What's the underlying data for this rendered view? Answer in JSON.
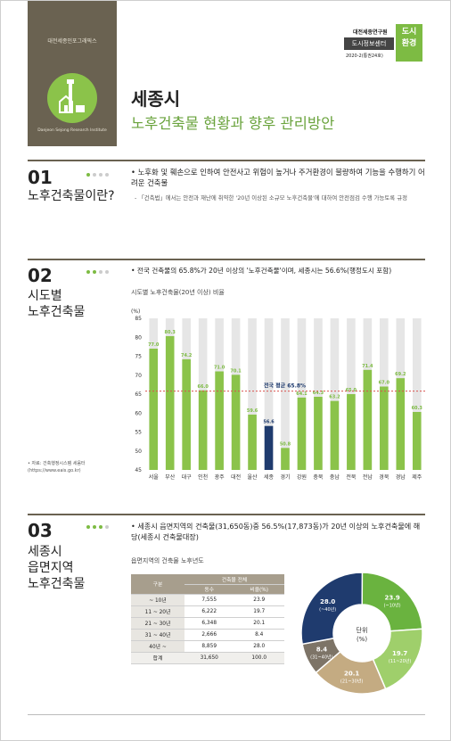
{
  "sidebar": {
    "top_label": "대전세종인포그래픽스",
    "institute": "Daejeon Sejong Research Institute"
  },
  "badge": {
    "org": "대전세종연구원",
    "center": "도시정보센터",
    "issue": "2020-2(통권24호)",
    "topic_line1": "도시",
    "topic_line2": "환경"
  },
  "title": {
    "main": "세종시",
    "sub": "노후건축물 현황과 향후 관리방안"
  },
  "section1": {
    "number": "01",
    "title": "노후건축물이란?",
    "bullet": "• 노후화 및 훼손으로 인하여 안전사고 위험이 높거나 주거환경이 불량하여 기능을 수행하기 어려운 건축물",
    "sub": "- 「건축법」에서는 안전과 재난에 취약한 '20년 이상된 소규모 노후건축물'에 대하여 안전점검 수행 가능토록 규정"
  },
  "section2": {
    "number": "02",
    "title": "시도별\n노후건축물",
    "bullet": "• 전국 건축물의 65.8%가 20년 이상의 '노후건축물'이며, 세종시는 56.6%(행정도시 포함)",
    "chart_title": "시도별 노후건축물(20년 이상) 비율",
    "source": "• 자료: 건축행정시스템 세움터\n(https://www.eais.go.kr)"
  },
  "chart_data": {
    "type": "bar",
    "title": "시도별 노후건축물(20년 이상) 비율",
    "ylabel": "(%)",
    "ylim": [
      45,
      85
    ],
    "yticks": [
      45,
      50,
      55,
      60,
      65,
      70,
      75,
      80,
      85
    ],
    "categories": [
      "서울",
      "부산",
      "대구",
      "인천",
      "광주",
      "대전",
      "울산",
      "세종",
      "경기",
      "강원",
      "충북",
      "충남",
      "전북",
      "전남",
      "경북",
      "경남",
      "제주"
    ],
    "values": [
      77.0,
      80.3,
      74.2,
      66.0,
      71.0,
      70.1,
      59.6,
      56.6,
      50.8,
      64.1,
      64.3,
      63.2,
      65.0,
      71.4,
      67.0,
      69.2,
      60.3
    ],
    "highlight": "세종",
    "average": {
      "label": "전국 평균 65.8%",
      "value": 65.8
    },
    "colors": {
      "bar": "#8bc34a",
      "highlight": "#1f3b6e",
      "bg": "#e6e6e6",
      "avg": "#d9534f"
    }
  },
  "section3": {
    "number": "03",
    "title": "세종시\n읍면지역\n노후건축물",
    "bullet": "• 세종시 읍면지역의 건축물(31,650동)중 56.5%(17,873동)가 20년 이상의 노후건축물에 해당(세종시 건축물대장)",
    "table_title": "읍면지역의 건축물 노후년도",
    "table": {
      "col_group": "구분",
      "col_header": "건축물 전체",
      "col1": "동수",
      "col2": "비율(%)",
      "rows": [
        {
          "label": "~ 10년",
          "count": "7,555",
          "pct": "23.9"
        },
        {
          "label": "11 ~ 20년",
          "count": "6,222",
          "pct": "19.7"
        },
        {
          "label": "21 ~ 30년",
          "count": "6,348",
          "pct": "20.1"
        },
        {
          "label": "31 ~ 40년",
          "count": "2,666",
          "pct": "8.4"
        },
        {
          "label": "40년 ~",
          "count": "8,859",
          "pct": "28.0"
        },
        {
          "label": "합계",
          "count": "31,650",
          "pct": "100.0"
        }
      ]
    },
    "donut": {
      "center_label": "단위",
      "center_unit": "(%)",
      "slices": [
        {
          "value": 23.9,
          "label": "(~10년)",
          "color": "#6ab33f"
        },
        {
          "value": 19.7,
          "label": "(11~20년)",
          "color": "#9fcf6b"
        },
        {
          "value": 20.1,
          "label": "(21~30년)",
          "color": "#c4ab82"
        },
        {
          "value": 8.4,
          "label": "(31~40년)",
          "color": "#7d7467"
        },
        {
          "value": 28.0,
          "label": "(~40년)",
          "color": "#1f3b6e"
        }
      ]
    }
  }
}
